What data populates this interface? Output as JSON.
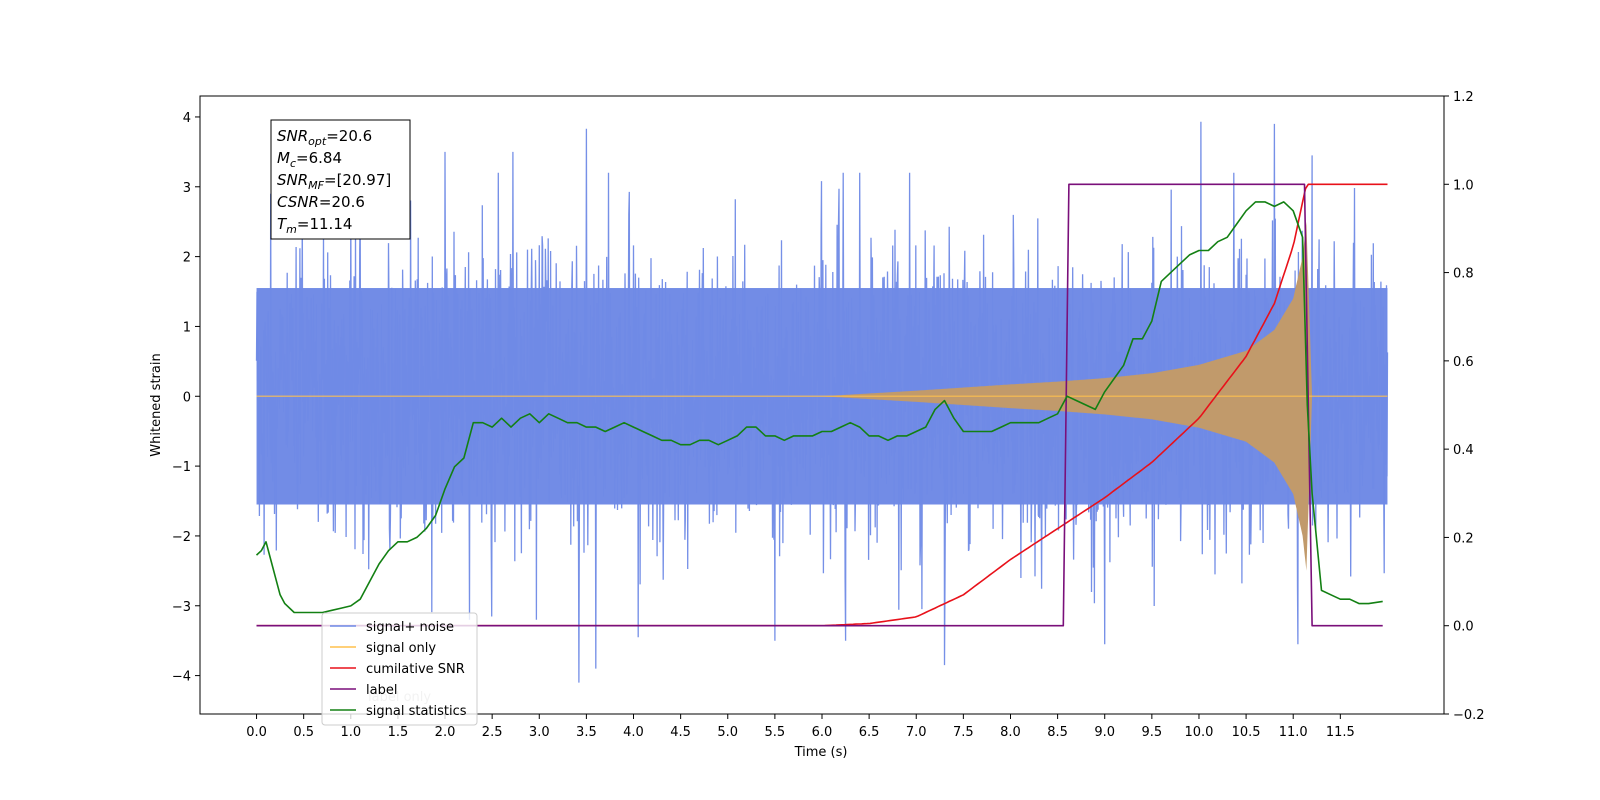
{
  "chart_data": {
    "type": "line",
    "xlabel": "Time (s)",
    "ylabel": "Whitened strain",
    "xlim": [
      -0.6,
      12.6
    ],
    "ylim": [
      -4.55,
      4.3
    ],
    "y2lim": [
      -0.2,
      1.2
    ],
    "x_ticks": [
      0.0,
      0.5,
      1.0,
      1.5,
      2.0,
      2.5,
      3.0,
      3.5,
      4.0,
      4.5,
      5.0,
      5.5,
      6.0,
      6.5,
      7.0,
      7.5,
      8.0,
      8.5,
      9.0,
      9.5,
      10.0,
      10.5,
      11.0,
      11.5
    ],
    "x_tick_labels": [
      "0.0",
      "0.5",
      "1.0",
      "1.5",
      "2.0",
      "2.5",
      "3.0",
      "3.5",
      "4.0",
      "4.5",
      "5.0",
      "5.5",
      "6.0",
      "6.5",
      "7.0",
      "7.5",
      "8.0",
      "8.5",
      "9.0",
      "9.5",
      "10.0",
      "10.5",
      "11.0",
      "11.5"
    ],
    "y_ticks": [
      -4,
      -3,
      -2,
      -1,
      0,
      1,
      2,
      3,
      4
    ],
    "y_tick_labels": [
      "−4",
      "−3",
      "−2",
      "−1",
      "0",
      "1",
      "2",
      "3",
      "4"
    ],
    "y2_ticks": [
      -0.2,
      0.0,
      0.2,
      0.4,
      0.6,
      0.8,
      1.0,
      1.2
    ],
    "y2_tick_labels": [
      "−0.2",
      "0.0",
      "0.2",
      "0.4",
      "0.6",
      "0.8",
      "1.0",
      "1.2"
    ],
    "grid": false,
    "legend_position": "lower-left",
    "series": [
      {
        "name": "signal+ noise",
        "color": "#6f8ae6",
        "axis": "left",
        "x_range": [
          0.0,
          12.0
        ],
        "envelope": {
          "core_amplitude": 1.55,
          "outer_amplitude": 3.9
        },
        "notable_peaks": [
          [
            0.15,
            2.9
          ],
          [
            1.1,
            2.7
          ],
          [
            2.0,
            3.5
          ],
          [
            2.72,
            3.5
          ],
          [
            3.5,
            3.83
          ],
          [
            3.42,
            -4.1
          ],
          [
            3.6,
            -3.9
          ],
          [
            4.05,
            -3.45
          ],
          [
            5.5,
            -3.5
          ],
          [
            6.25,
            -3.5
          ],
          [
            7.3,
            -3.85
          ],
          [
            9.0,
            -3.55
          ],
          [
            10.02,
            3.93
          ],
          [
            10.8,
            3.9
          ],
          [
            11.05,
            -3.55
          ],
          [
            11.2,
            3.45
          ]
        ]
      },
      {
        "name": "signal only",
        "color": "#ffc14d",
        "axis": "left",
        "x_range": [
          0.0,
          12.0
        ],
        "envelope_points": [
          [
            0.0,
            0.0
          ],
          [
            6.0,
            0.0
          ],
          [
            7.0,
            0.08
          ],
          [
            8.0,
            0.17
          ],
          [
            8.5,
            0.21
          ],
          [
            9.0,
            0.26
          ],
          [
            9.5,
            0.33
          ],
          [
            10.0,
            0.45
          ],
          [
            10.5,
            0.65
          ],
          [
            10.8,
            0.95
          ],
          [
            11.0,
            1.4
          ],
          [
            11.1,
            2.0
          ],
          [
            11.14,
            2.5
          ],
          [
            11.2,
            0.0
          ],
          [
            12.0,
            0.0
          ]
        ]
      },
      {
        "name": "cumilative SNR",
        "color": "#e8111a",
        "axis": "right",
        "points": [
          [
            0.0,
            0.0
          ],
          [
            5.5,
            0.0
          ],
          [
            6.0,
            0.0
          ],
          [
            6.5,
            0.005
          ],
          [
            7.0,
            0.02
          ],
          [
            7.5,
            0.07
          ],
          [
            8.0,
            0.15
          ],
          [
            8.5,
            0.22
          ],
          [
            9.0,
            0.29
          ],
          [
            9.5,
            0.37
          ],
          [
            10.0,
            0.47
          ],
          [
            10.5,
            0.61
          ],
          [
            10.8,
            0.73
          ],
          [
            11.0,
            0.86
          ],
          [
            11.14,
            1.0
          ],
          [
            12.0,
            1.0
          ]
        ]
      },
      {
        "name": "label",
        "color": "#7a0f7a",
        "axis": "right",
        "points": [
          [
            0.0,
            0.0
          ],
          [
            8.56,
            0.0
          ],
          [
            8.62,
            1.0
          ],
          [
            11.12,
            1.0
          ],
          [
            11.2,
            0.0
          ],
          [
            11.95,
            0.0
          ]
        ]
      },
      {
        "name": "signal statistics",
        "color": "#138013",
        "axis": "right",
        "points": [
          [
            0.0,
            0.16
          ],
          [
            0.05,
            0.17
          ],
          [
            0.1,
            0.19
          ],
          [
            0.15,
            0.15
          ],
          [
            0.2,
            0.11
          ],
          [
            0.25,
            0.07
          ],
          [
            0.3,
            0.05
          ],
          [
            0.4,
            0.03
          ],
          [
            0.5,
            0.03
          ],
          [
            0.6,
            0.03
          ],
          [
            0.7,
            0.03
          ],
          [
            0.8,
            0.035
          ],
          [
            0.9,
            0.04
          ],
          [
            1.0,
            0.045
          ],
          [
            1.1,
            0.06
          ],
          [
            1.2,
            0.1
          ],
          [
            1.3,
            0.14
          ],
          [
            1.4,
            0.17
          ],
          [
            1.5,
            0.19
          ],
          [
            1.6,
            0.19
          ],
          [
            1.7,
            0.2
          ],
          [
            1.8,
            0.22
          ],
          [
            1.9,
            0.25
          ],
          [
            2.0,
            0.31
          ],
          [
            2.1,
            0.36
          ],
          [
            2.2,
            0.38
          ],
          [
            2.3,
            0.46
          ],
          [
            2.4,
            0.46
          ],
          [
            2.5,
            0.45
          ],
          [
            2.6,
            0.47
          ],
          [
            2.7,
            0.45
          ],
          [
            2.8,
            0.47
          ],
          [
            2.9,
            0.48
          ],
          [
            3.0,
            0.46
          ],
          [
            3.1,
            0.48
          ],
          [
            3.2,
            0.47
          ],
          [
            3.3,
            0.46
          ],
          [
            3.4,
            0.46
          ],
          [
            3.5,
            0.45
          ],
          [
            3.6,
            0.45
          ],
          [
            3.7,
            0.44
          ],
          [
            3.8,
            0.45
          ],
          [
            3.9,
            0.46
          ],
          [
            4.0,
            0.45
          ],
          [
            4.1,
            0.44
          ],
          [
            4.2,
            0.43
          ],
          [
            4.3,
            0.42
          ],
          [
            4.4,
            0.42
          ],
          [
            4.5,
            0.41
          ],
          [
            4.6,
            0.41
          ],
          [
            4.7,
            0.42
          ],
          [
            4.8,
            0.42
          ],
          [
            4.9,
            0.41
          ],
          [
            5.0,
            0.42
          ],
          [
            5.1,
            0.43
          ],
          [
            5.2,
            0.45
          ],
          [
            5.3,
            0.45
          ],
          [
            5.4,
            0.43
          ],
          [
            5.5,
            0.43
          ],
          [
            5.6,
            0.42
          ],
          [
            5.7,
            0.43
          ],
          [
            5.8,
            0.43
          ],
          [
            5.9,
            0.43
          ],
          [
            6.0,
            0.44
          ],
          [
            6.1,
            0.44
          ],
          [
            6.2,
            0.45
          ],
          [
            6.3,
            0.46
          ],
          [
            6.4,
            0.45
          ],
          [
            6.5,
            0.43
          ],
          [
            6.6,
            0.43
          ],
          [
            6.7,
            0.42
          ],
          [
            6.8,
            0.43
          ],
          [
            6.9,
            0.43
          ],
          [
            7.0,
            0.44
          ],
          [
            7.1,
            0.45
          ],
          [
            7.2,
            0.49
          ],
          [
            7.3,
            0.51
          ],
          [
            7.4,
            0.47
          ],
          [
            7.5,
            0.44
          ],
          [
            7.6,
            0.44
          ],
          [
            7.7,
            0.44
          ],
          [
            7.8,
            0.44
          ],
          [
            7.9,
            0.45
          ],
          [
            8.0,
            0.46
          ],
          [
            8.1,
            0.46
          ],
          [
            8.2,
            0.46
          ],
          [
            8.3,
            0.46
          ],
          [
            8.4,
            0.47
          ],
          [
            8.5,
            0.48
          ],
          [
            8.6,
            0.52
          ],
          [
            8.7,
            0.51
          ],
          [
            8.8,
            0.5
          ],
          [
            8.9,
            0.49
          ],
          [
            9.0,
            0.53
          ],
          [
            9.1,
            0.56
          ],
          [
            9.2,
            0.59
          ],
          [
            9.3,
            0.65
          ],
          [
            9.4,
            0.65
          ],
          [
            9.5,
            0.69
          ],
          [
            9.6,
            0.78
          ],
          [
            9.7,
            0.8
          ],
          [
            9.8,
            0.82
          ],
          [
            9.9,
            0.84
          ],
          [
            10.0,
            0.85
          ],
          [
            10.1,
            0.85
          ],
          [
            10.2,
            0.87
          ],
          [
            10.3,
            0.88
          ],
          [
            10.4,
            0.91
          ],
          [
            10.5,
            0.94
          ],
          [
            10.6,
            0.96
          ],
          [
            10.7,
            0.96
          ],
          [
            10.8,
            0.95
          ],
          [
            10.9,
            0.96
          ],
          [
            11.0,
            0.94
          ],
          [
            11.1,
            0.88
          ],
          [
            11.15,
            0.5
          ],
          [
            11.2,
            0.3
          ],
          [
            11.3,
            0.08
          ],
          [
            11.4,
            0.07
          ],
          [
            11.5,
            0.06
          ],
          [
            11.6,
            0.06
          ],
          [
            11.7,
            0.05
          ],
          [
            11.8,
            0.05
          ],
          [
            11.95,
            0.055
          ]
        ]
      }
    ],
    "info_box": [
      {
        "var": "SNR",
        "sub": "opt",
        "value": "=20.6"
      },
      {
        "var": "M",
        "sub": "c",
        "value": "=6.84"
      },
      {
        "var": "SNR",
        "sub": "MF",
        "value": "=[20.97]"
      },
      {
        "var": "CSNR",
        "sub": "",
        "value": "=20.6"
      },
      {
        "var": "T",
        "sub": "m",
        "value": "=11.14"
      }
    ],
    "legend_overlap_text": "label only"
  }
}
